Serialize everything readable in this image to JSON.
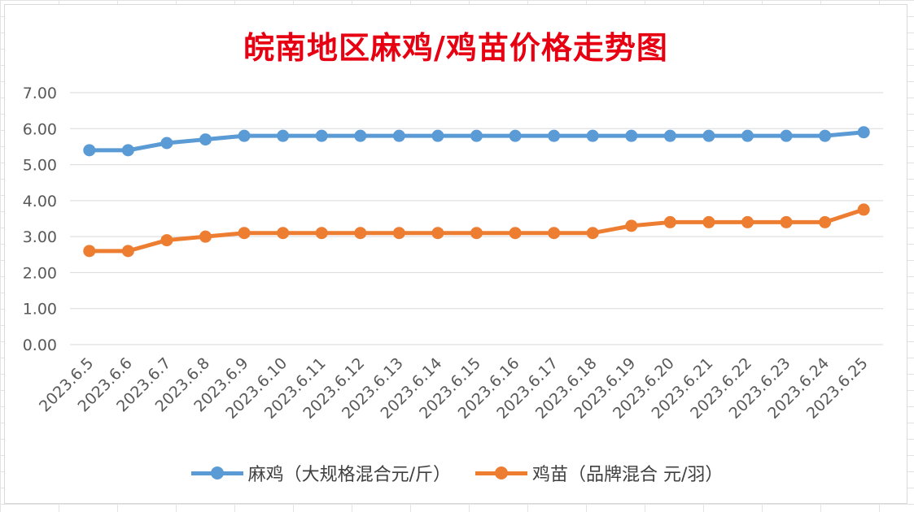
{
  "chart_data": {
    "type": "line",
    "title": "皖南地区麻鸡/鸡苗价格走势图",
    "categories": [
      "2023.6.5",
      "2023.6.6",
      "2023.6.7",
      "2023.6.8",
      "2023.6.9",
      "2023.6.10",
      "2023.6.11",
      "2023.6.12",
      "2023.6.13",
      "2023.6.14",
      "2023.6.15",
      "2023.6.16",
      "2023.6.17",
      "2023.6.18",
      "2023.6.19",
      "2023.6.20",
      "2023.6.21",
      "2023.6.22",
      "2023.6.23",
      "2023.6.24",
      "2023.6.25"
    ],
    "series": [
      {
        "name": "麻鸡（大规格混合元/斤）",
        "color": "#5b9bd5",
        "values": [
          5.4,
          5.4,
          5.6,
          5.7,
          5.8,
          5.8,
          5.8,
          5.8,
          5.8,
          5.8,
          5.8,
          5.8,
          5.8,
          5.8,
          5.8,
          5.8,
          5.8,
          5.8,
          5.8,
          5.8,
          5.9
        ]
      },
      {
        "name": "鸡苗（品牌混合 元/羽）",
        "color": "#ed7d31",
        "values": [
          2.6,
          2.6,
          2.9,
          3.0,
          3.1,
          3.1,
          3.1,
          3.1,
          3.1,
          3.1,
          3.1,
          3.1,
          3.1,
          3.1,
          3.3,
          3.4,
          3.4,
          3.4,
          3.4,
          3.4,
          3.75
        ]
      }
    ],
    "ylim": [
      0,
      7
    ],
    "y_ticks": [
      "0.00",
      "1.00",
      "2.00",
      "3.00",
      "4.00",
      "5.00",
      "6.00",
      "7.00"
    ],
    "grid": true,
    "legend_position": "bottom"
  }
}
